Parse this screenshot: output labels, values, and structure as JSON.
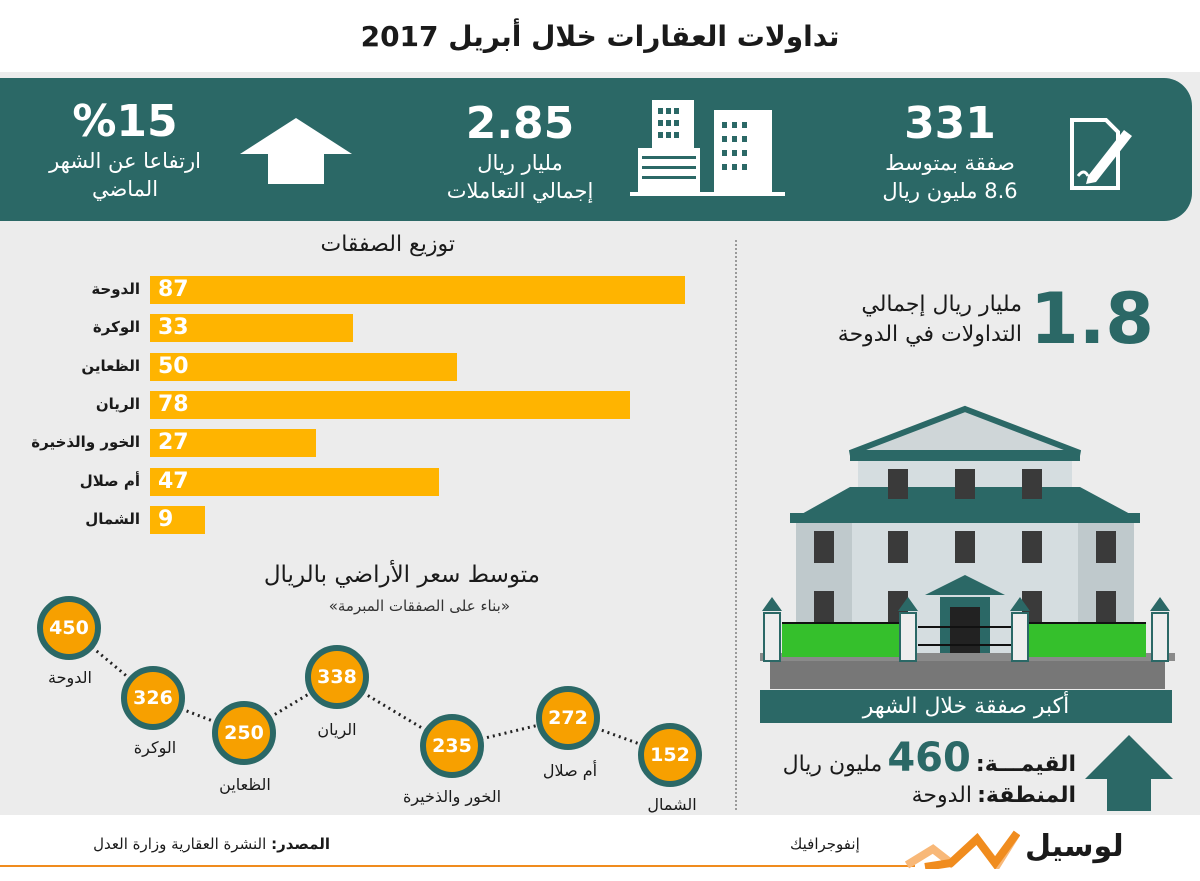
{
  "title": "تداولات العقارات خلال أبريل 2017",
  "banner": {
    "deals": {
      "number": "331",
      "line1": "صفقة بمتوسط",
      "line2": "8.6 مليون ريال",
      "icon": "document-pen-icon"
    },
    "total": {
      "number": "2.85",
      "line1": "مليار ريال",
      "line2": "إجمالي التعاملات",
      "icon": "buildings-icon"
    },
    "growth": {
      "number": "%15",
      "line1": "ارتفاعا عن الشهر",
      "line2": "الماضي",
      "icon": "up-arrow-icon"
    }
  },
  "colors": {
    "teal": "#2b6866",
    "orange": "#ffb400",
    "circle_orange": "#f7a000",
    "accent_line": "#f08c1e"
  },
  "chart_data": [
    {
      "type": "bar",
      "title": "توزيع الصفقات",
      "orientation": "horizontal",
      "categories": [
        "الدوحة",
        "الوكرة",
        "الظعاين",
        "الريان",
        "الخور والذخيرة",
        "أم صلال",
        "الشمال"
      ],
      "values": [
        87,
        33,
        50,
        78,
        27,
        47,
        9
      ]
    },
    {
      "type": "line",
      "title": "متوسط سعر الأراضي بالريال",
      "subtitle": "«بناء على الصفقات المبرمة»",
      "categories": [
        "الدوحة",
        "الوكرة",
        "الظعاين",
        "الريان",
        "الخور والذخيرة",
        "أم صلال",
        "الشمال"
      ],
      "values": [
        450,
        326,
        250,
        338,
        235,
        272,
        152
      ],
      "line_style": "dotted"
    }
  ],
  "doha": {
    "number": "1.8",
    "line1": "مليار ريال إجمالي",
    "line2": "التداولات في الدوحة"
  },
  "biggest": {
    "heading": "أكبر صفقة خلال الشهر",
    "value_label": "القيمـــة:",
    "value_number": "460",
    "value_unit": "مليون ريال",
    "region_label": "المنطقة:",
    "region_value": "الدوحة"
  },
  "footer": {
    "source_label": "المصدر:",
    "source_text": "النشرة العقارية وزارة العدل",
    "brand": "لوسيل",
    "brand_sub": "إنفوجرافيك"
  }
}
